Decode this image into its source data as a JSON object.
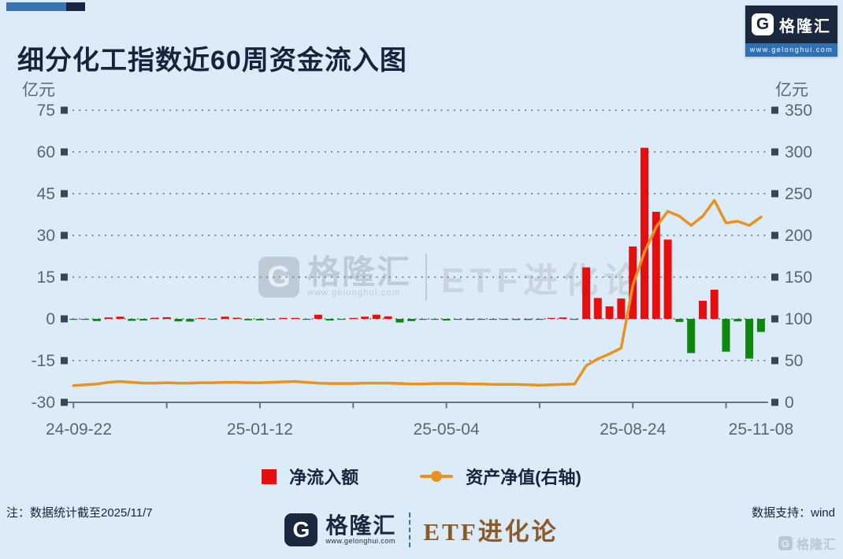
{
  "page": {
    "background": "#dbecf8"
  },
  "header": {
    "title": "细分化工指数近60周资金流入图",
    "accent_colors": {
      "bar": "#3a73b5",
      "square": "#18253f"
    },
    "brand": {
      "g": "G",
      "name": "格隆汇",
      "url": "www.gelonghui.com"
    }
  },
  "chart": {
    "watermark": {
      "g": "G",
      "brand": "格隆汇",
      "url": "www.gelonghui.com",
      "etf": "ETF进化论"
    }
  },
  "chart_data": {
    "type": "bar+line",
    "title": "细分化工指数近60周资金流入图",
    "weeks": 60,
    "x_labels": [
      "24-09-22",
      "25-01-12",
      "25-05-04",
      "25-08-24",
      "25-11-08"
    ],
    "x_label_weeks": [
      1,
      17,
      33,
      49,
      60
    ],
    "x_minor_tick_every_weeks": 8,
    "left_axis": {
      "unit": "亿元",
      "ticks": [
        75,
        60,
        45,
        30,
        15,
        0,
        -15,
        -30
      ],
      "min": -30,
      "max": 75
    },
    "right_axis": {
      "unit": "亿元",
      "ticks": [
        350,
        300,
        250,
        200,
        150,
        100,
        50,
        0
      ],
      "min": 0,
      "max": 350
    },
    "grid": "dotted-horizontal",
    "legend_position": "bottom",
    "series": [
      {
        "name": "净流入额",
        "type": "bar",
        "axis": "left",
        "color_positive": "#e60f0f",
        "color_negative": "#0e870e",
        "values": [
          -0.2,
          -0.3,
          -0.8,
          0.5,
          0.8,
          -0.7,
          -0.6,
          0.4,
          0.6,
          -0.9,
          -1,
          0.3,
          -0.2,
          0.8,
          0.4,
          -0.5,
          -0.5,
          -0.2,
          0.3,
          0.3,
          -0.2,
          1.5,
          -0.6,
          -0.2,
          0.2,
          0.8,
          1.5,
          0.9,
          -1.3,
          -0.8,
          -0.3,
          -0.1,
          -0.6,
          -0.2,
          -0.4,
          -0.1,
          -0.1,
          -0.3,
          -0.4,
          -0.4,
          -0.1,
          0.2,
          0.5,
          -0.1,
          18.5,
          7.5,
          4.5,
          7.3,
          26,
          61.5,
          38.5,
          28.5,
          -1.1,
          -12.3,
          6.5,
          10.5,
          -11.8,
          -0.9,
          -14.3,
          -4.7
        ]
      },
      {
        "name": "资产净值(右轴)",
        "type": "line",
        "axis": "right",
        "color": "#e8921f",
        "values": [
          20,
          21,
          22,
          24,
          25,
          24,
          23,
          23,
          23.5,
          23,
          23,
          23.5,
          23.5,
          24,
          24,
          23.5,
          23.5,
          24,
          24.5,
          25,
          24,
          23,
          22.5,
          22.5,
          22.5,
          23,
          23,
          23,
          22.5,
          22,
          22,
          22.5,
          22.5,
          22.5,
          22,
          22,
          21.5,
          21.5,
          21.5,
          21,
          20.5,
          21,
          21.5,
          22,
          44,
          52,
          58,
          65,
          140,
          180,
          210,
          229,
          223,
          212,
          223,
          242,
          215,
          217,
          212,
          222
        ]
      }
    ]
  },
  "footer": {
    "note": "注：数据统计截至2025/11/7",
    "source": "数据支持：wind",
    "brand": {
      "g": "G",
      "name": "格隆汇",
      "url": "www.gelonghui.com"
    },
    "etf": "ETF进化论",
    "corner": {
      "g": "G",
      "name": "格隆汇"
    }
  }
}
